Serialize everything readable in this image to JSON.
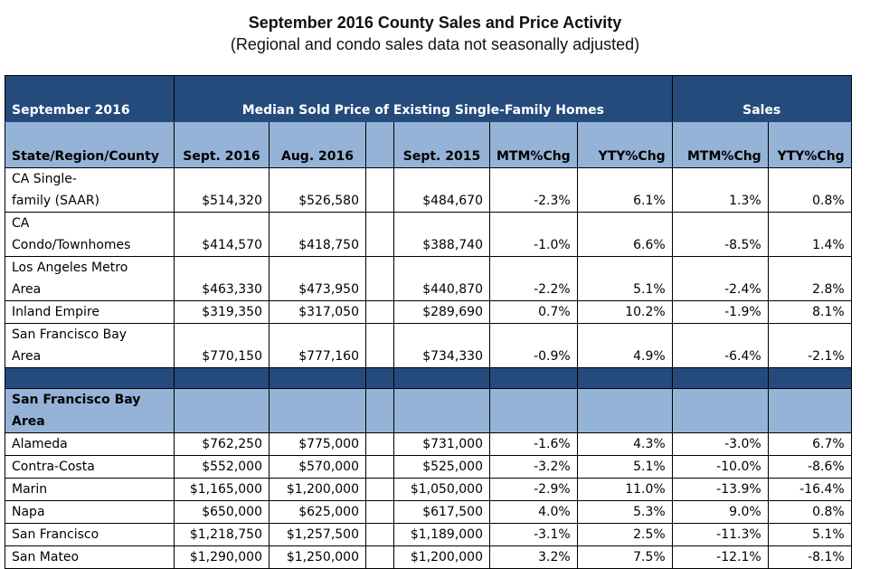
{
  "title": "September 2016 County Sales and Price Activity",
  "subtitle": "(Regional and condo sales data not seasonally adjusted)",
  "header_top": {
    "col1": "September 2016",
    "median_group": "Median Sold Price of Existing Single-Family Homes",
    "sales_group": "Sales"
  },
  "columns": [
    "State/Region/County",
    "Sept. 2016",
    "Aug. 2016",
    "Sept. 2015",
    "MTM%Chg",
    "YTY%Chg",
    "MTM%Chg",
    "YTY%Chg"
  ],
  "rows": [
    {
      "name_lines": [
        "CA Single-",
        "family (SAAR)"
      ],
      "sep16": "$514,320",
      "aug16": "$526,580",
      "sep15": "$484,670",
      "mtm": "-2.3%",
      "yty": "6.1%",
      "s_mtm": "1.3%",
      "s_yty": "0.8%"
    },
    {
      "name_lines": [
        "CA",
        "Condo/Townhomes"
      ],
      "sep16": "$414,570",
      "aug16": "$418,750",
      "sep15": "$388,740",
      "mtm": "-1.0%",
      "yty": "6.6%",
      "s_mtm": "-8.5%",
      "s_yty": "1.4%"
    },
    {
      "name_lines": [
        "Los Angeles Metro",
        "Area"
      ],
      "sep16": "$463,330",
      "aug16": "$473,950",
      "sep15": "$440,870",
      "mtm": "-2.2%",
      "yty": "5.1%",
      "s_mtm": "-2.4%",
      "s_yty": "2.8%"
    },
    {
      "name_lines": [
        "Inland Empire"
      ],
      "sep16": "$319,350",
      "aug16": "$317,050",
      "sep15": "$289,690",
      "mtm": "0.7%",
      "yty": "10.2%",
      "s_mtm": "-1.9%",
      "s_yty": "8.1%"
    },
    {
      "name_lines": [
        "San Francisco Bay",
        "Area"
      ],
      "sep16": "$770,150",
      "aug16": "$777,160",
      "sep15": "$734,330",
      "mtm": "-0.9%",
      "yty": "4.9%",
      "s_mtm": "-6.4%",
      "s_yty": "-2.1%"
    }
  ],
  "section": {
    "name_lines": [
      "San Francisco Bay",
      "Area"
    ]
  },
  "county_rows": [
    {
      "name": "Alameda",
      "sep16": "$762,250",
      "aug16": "$775,000",
      "sep15": "$731,000",
      "mtm": "-1.6%",
      "yty": "4.3%",
      "s_mtm": "-3.0%",
      "s_yty": "6.7%"
    },
    {
      "name": "Contra-Costa",
      "sep16": "$552,000",
      "aug16": "$570,000",
      "sep15": "$525,000",
      "mtm": "-3.2%",
      "yty": "5.1%",
      "s_mtm": "-10.0%",
      "s_yty": "-8.6%"
    },
    {
      "name": "Marin",
      "sep16": "$1,165,000",
      "aug16": "$1,200,000",
      "sep15": "$1,050,000",
      "mtm": "-2.9%",
      "yty": "11.0%",
      "s_mtm": "-13.9%",
      "s_yty": "-16.4%"
    },
    {
      "name": "Napa",
      "sep16": "$650,000",
      "aug16": "$625,000",
      "sep15": "$617,500",
      "mtm": "4.0%",
      "yty": "5.3%",
      "s_mtm": "9.0%",
      "s_yty": "0.8%"
    },
    {
      "name": "San Francisco",
      "sep16": "$1,218,750",
      "aug16": "$1,257,500",
      "sep15": "$1,189,000",
      "mtm": "-3.1%",
      "yty": "2.5%",
      "s_mtm": "-11.3%",
      "s_yty": "5.1%"
    },
    {
      "name": "San Mateo",
      "sep16": "$1,290,000",
      "aug16": "$1,250,000",
      "sep15": "$1,200,000",
      "mtm": "3.2%",
      "yty": "7.5%",
      "s_mtm": "-12.1%",
      "s_yty": "-8.1%"
    }
  ]
}
